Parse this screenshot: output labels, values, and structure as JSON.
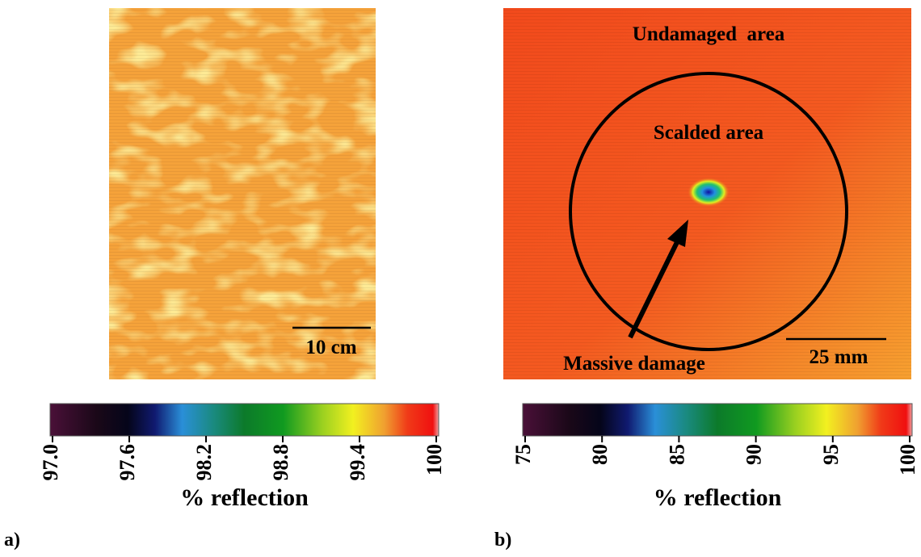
{
  "panels": [
    {
      "label": "a)",
      "scale_bar": "10 cm",
      "colorbar": {
        "lim": [
          97,
          100
        ],
        "ticks": [
          {
            "value": 97,
            "label": "97.0"
          },
          97.6,
          98.2,
          98.8,
          99.4,
          100
        ],
        "label": "% reflection"
      }
    },
    {
      "label": "b)",
      "annotations": [
        "Undamaged  area",
        "Scalded area",
        "Massive damage"
      ],
      "scale_bar": "25 mm",
      "colorbar": {
        "lim": [
          75,
          100
        ],
        "ticks": [
          75,
          80,
          85,
          90,
          95,
          100
        ],
        "label": "% reflection"
      }
    }
  ]
}
